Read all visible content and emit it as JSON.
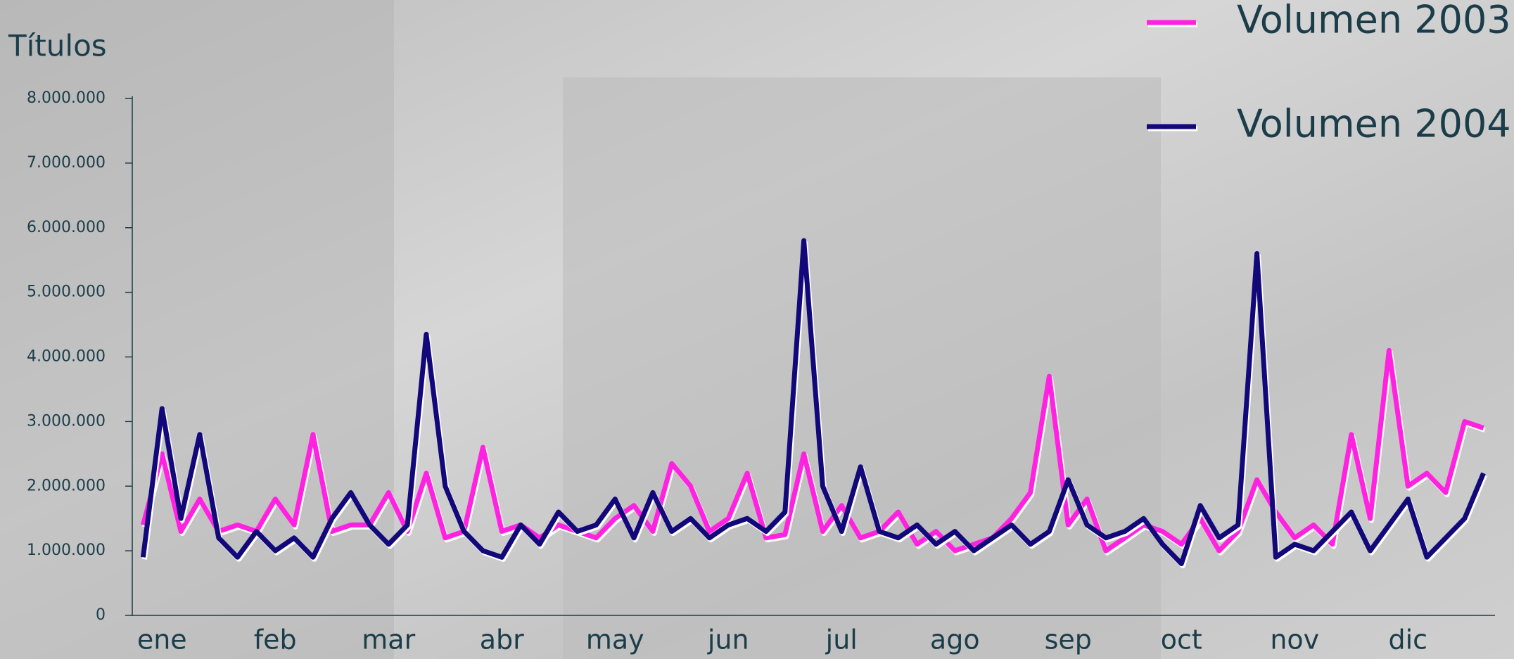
{
  "chart_data": {
    "type": "line",
    "y_label": "Títulos",
    "categories": [
      "ene",
      null,
      null,
      null,
      null,
      null,
      "feb",
      null,
      null,
      null,
      null,
      null,
      "mar",
      null,
      null,
      null,
      null,
      null,
      "abr",
      null,
      null,
      null,
      null,
      null,
      "may",
      null,
      null,
      null,
      null,
      null,
      "jun",
      null,
      null,
      null,
      null,
      null,
      "jul",
      null,
      null,
      null,
      null,
      null,
      "ago",
      null,
      null,
      null,
      null,
      null,
      "sep",
      null,
      null,
      null,
      null,
      null,
      "oct",
      null,
      null,
      null,
      null,
      null,
      "nov",
      null,
      null,
      null,
      null,
      null,
      "dic",
      null,
      null,
      null,
      null,
      null
    ],
    "series": [
      {
        "name": "Volumen 2003",
        "color": "#ff22e0",
        "values": [
          1400000,
          2500000,
          1300000,
          1800000,
          1300000,
          1400000,
          1300000,
          1800000,
          1400000,
          2800000,
          1300000,
          1400000,
          1400000,
          1900000,
          1300000,
          2200000,
          1200000,
          1300000,
          2600000,
          1300000,
          1400000,
          1200000,
          1400000,
          1300000,
          1200000,
          1500000,
          1700000,
          1300000,
          2350000,
          2000000,
          1300000,
          1500000,
          2200000,
          1200000,
          1250000,
          2500000,
          1300000,
          1700000,
          1200000,
          1300000,
          1600000,
          1100000,
          1300000,
          1000000,
          1100000,
          1200000,
          1500000,
          1900000,
          3700000,
          1400000,
          1800000,
          1000000,
          1200000,
          1400000,
          1300000,
          1100000,
          1500000,
          1000000,
          1300000,
          2100000,
          1600000,
          1200000,
          1400000,
          1100000,
          2800000,
          1500000,
          4100000,
          2000000,
          2200000,
          1900000,
          3000000,
          2900000
        ]
      },
      {
        "name": "Volumen 2004",
        "color": "#12087a",
        "values": [
          900000,
          3200000,
          1500000,
          2800000,
          1200000,
          900000,
          1300000,
          1000000,
          1200000,
          900000,
          1500000,
          1900000,
          1400000,
          1100000,
          1400000,
          4350000,
          2000000,
          1300000,
          1000000,
          900000,
          1400000,
          1100000,
          1600000,
          1300000,
          1400000,
          1800000,
          1200000,
          1900000,
          1300000,
          1500000,
          1200000,
          1400000,
          1500000,
          1300000,
          1600000,
          5800000,
          2000000,
          1300000,
          2300000,
          1300000,
          1200000,
          1400000,
          1100000,
          1300000,
          1000000,
          1200000,
          1400000,
          1100000,
          1300000,
          2100000,
          1400000,
          1200000,
          1300000,
          1500000,
          1100000,
          800000,
          1700000,
          1200000,
          1400000,
          5600000,
          900000,
          1100000,
          1000000,
          1300000,
          1600000,
          1000000,
          1400000,
          1800000,
          900000,
          1200000,
          1500000,
          2200000
        ]
      }
    ],
    "ylim": [
      0,
      8000000
    ],
    "yticks": [
      0,
      {
        "value": 1000000,
        "label": "1.000.000"
      },
      {
        "value": 2000000,
        "label": "2.000.000"
      },
      {
        "value": 3000000,
        "label": "3.000.000"
      },
      {
        "value": 4000000,
        "label": "4.000.000"
      },
      {
        "value": 5000000,
        "label": "5.000.000"
      },
      {
        "value": 6000000,
        "label": "6.000.000"
      },
      {
        "value": 7000000,
        "label": "7.000.000"
      },
      {
        "value": 8000000,
        "label": "8.000.000"
      }
    ],
    "legend": "top-right"
  }
}
